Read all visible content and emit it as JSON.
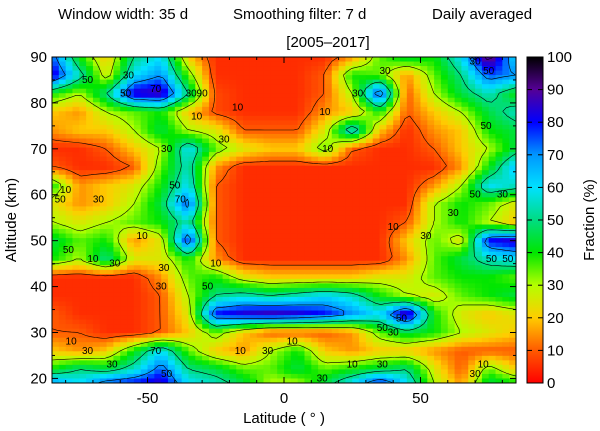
{
  "header": {
    "window_width": "Window width: 35 d",
    "smoothing": "Smoothing filter: 7 d",
    "averaging": "Daily averaged",
    "period": "[2005–2017]"
  },
  "chart_data": {
    "type": "heatmap",
    "xlabel": "Latitude ( ° )",
    "ylabel": "Altitude (km)",
    "colorbar_label": "Fraction (%)",
    "xlim": [
      -85,
      85
    ],
    "ylim": [
      19,
      90
    ],
    "clim": [
      0,
      100
    ],
    "x_ticks": [
      {
        "value": -50,
        "label": "-50"
      },
      {
        "value": 0,
        "label": "0"
      },
      {
        "value": 50,
        "label": "50"
      }
    ],
    "y_ticks": [
      {
        "value": 20,
        "label": "20"
      },
      {
        "value": 30,
        "label": "30"
      },
      {
        "value": 40,
        "label": "40"
      },
      {
        "value": 50,
        "label": "50"
      },
      {
        "value": 60,
        "label": "60"
      },
      {
        "value": 70,
        "label": "70"
      },
      {
        "value": 80,
        "label": "80"
      },
      {
        "value": 90,
        "label": "90"
      }
    ],
    "colorbar_ticks": [
      {
        "value": 0,
        "label": "0"
      },
      {
        "value": 10,
        "label": "10"
      },
      {
        "value": 20,
        "label": "20"
      },
      {
        "value": 30,
        "label": "30"
      },
      {
        "value": 40,
        "label": "40"
      },
      {
        "value": 50,
        "label": "50"
      },
      {
        "value": 60,
        "label": "60"
      },
      {
        "value": 70,
        "label": "70"
      },
      {
        "value": 80,
        "label": "80"
      },
      {
        "value": 90,
        "label": "90"
      },
      {
        "value": 100,
        "label": "100"
      }
    ],
    "colormap_stops": [
      {
        "value": 0,
        "color": "#ff0000"
      },
      {
        "value": 10,
        "color": "#ff5a00"
      },
      {
        "value": 20,
        "color": "#ffcc00"
      },
      {
        "value": 30,
        "color": "#b4ff00"
      },
      {
        "value": 40,
        "color": "#00e600"
      },
      {
        "value": 50,
        "color": "#00dc82"
      },
      {
        "value": 60,
        "color": "#00e1ff"
      },
      {
        "value": 70,
        "color": "#0096ff"
      },
      {
        "value": 80,
        "color": "#0000ff"
      },
      {
        "value": 90,
        "color": "#550096"
      },
      {
        "value": 100,
        "color": "#000000"
      }
    ],
    "contour_levels": [
      10,
      30,
      50,
      70,
      90
    ],
    "contour_labels": [
      {
        "lat": -72,
        "alt": 85,
        "text": "50"
      },
      {
        "lat": -57,
        "alt": 86,
        "text": "30"
      },
      {
        "lat": -47,
        "alt": 83,
        "text": "70"
      },
      {
        "lat": -30,
        "alt": 82,
        "text": "90"
      },
      {
        "lat": -58,
        "alt": 82,
        "text": "50"
      },
      {
        "lat": -17,
        "alt": 79,
        "text": "10"
      },
      {
        "lat": -32,
        "alt": 77,
        "text": "10"
      },
      {
        "lat": -34,
        "alt": 82,
        "text": "30"
      },
      {
        "lat": -22,
        "alt": 72,
        "text": "30"
      },
      {
        "lat": -43,
        "alt": 70,
        "text": "30"
      },
      {
        "lat": 15,
        "alt": 78,
        "text": "10"
      },
      {
        "lat": 27,
        "alt": 82,
        "text": "30"
      },
      {
        "lat": 37,
        "alt": 87,
        "text": "30"
      },
      {
        "lat": 75,
        "alt": 87,
        "text": "50"
      },
      {
        "lat": 70,
        "alt": 89,
        "text": "30"
      },
      {
        "lat": 74,
        "alt": 75,
        "text": "50"
      },
      {
        "lat": 16,
        "alt": 70,
        "text": "10"
      },
      {
        "lat": -80,
        "alt": 61,
        "text": "10"
      },
      {
        "lat": -82,
        "alt": 59,
        "text": "50"
      },
      {
        "lat": -68,
        "alt": 59,
        "text": "30"
      },
      {
        "lat": -40,
        "alt": 62,
        "text": "50"
      },
      {
        "lat": -38,
        "alt": 59,
        "text": "70"
      },
      {
        "lat": 70,
        "alt": 60,
        "text": "50"
      },
      {
        "lat": 80,
        "alt": 60,
        "text": "30"
      },
      {
        "lat": 62,
        "alt": 56,
        "text": "30"
      },
      {
        "lat": -52,
        "alt": 51,
        "text": "10"
      },
      {
        "lat": -79,
        "alt": 48,
        "text": "50"
      },
      {
        "lat": -70,
        "alt": 46,
        "text": "10"
      },
      {
        "lat": -62,
        "alt": 45,
        "text": "30"
      },
      {
        "lat": -44,
        "alt": 44,
        "text": "30"
      },
      {
        "lat": -25,
        "alt": 45,
        "text": "10"
      },
      {
        "lat": -45,
        "alt": 40,
        "text": "30"
      },
      {
        "lat": -28,
        "alt": 40,
        "text": "50"
      },
      {
        "lat": 40,
        "alt": 53,
        "text": "10"
      },
      {
        "lat": 52,
        "alt": 51,
        "text": "30"
      },
      {
        "lat": 76,
        "alt": 46,
        "text": "50"
      },
      {
        "lat": 82,
        "alt": 46,
        "text": "50"
      },
      {
        "lat": 36,
        "alt": 31,
        "text": "50"
      },
      {
        "lat": 43,
        "alt": 33,
        "text": "50"
      },
      {
        "lat": 40,
        "alt": 30,
        "text": "30"
      },
      {
        "lat": 3,
        "alt": 28,
        "text": "10"
      },
      {
        "lat": -6,
        "alt": 26,
        "text": "30"
      },
      {
        "lat": -16,
        "alt": 26,
        "text": "10"
      },
      {
        "lat": -78,
        "alt": 28,
        "text": "10"
      },
      {
        "lat": -72,
        "alt": 26,
        "text": "30"
      },
      {
        "lat": -63,
        "alt": 23,
        "text": "30"
      },
      {
        "lat": -47,
        "alt": 26,
        "text": "70"
      },
      {
        "lat": -43,
        "alt": 21,
        "text": "50"
      },
      {
        "lat": 25,
        "alt": 23,
        "text": "10"
      },
      {
        "lat": 36,
        "alt": 23,
        "text": "30"
      },
      {
        "lat": 14,
        "alt": 20,
        "text": "30"
      },
      {
        "lat": 73,
        "alt": 23,
        "text": "10"
      },
      {
        "lat": 70,
        "alt": 21,
        "text": "30"
      }
    ],
    "grid_lat": [
      -85,
      -75,
      -65,
      -55,
      -45,
      -35,
      -25,
      -15,
      -5,
      5,
      15,
      25,
      35,
      45,
      55,
      65,
      75,
      85
    ],
    "grid_alt": [
      90,
      86,
      82,
      78,
      74,
      70,
      66,
      62,
      58,
      54,
      50,
      46,
      42,
      38,
      34,
      30,
      26,
      22,
      19
    ],
    "values": [
      [
        75,
        40,
        20,
        50,
        60,
        20,
        5,
        5,
        5,
        5,
        5,
        15,
        35,
        45,
        40,
        60,
        95,
        60
      ],
      [
        85,
        55,
        25,
        60,
        70,
        35,
        5,
        5,
        5,
        5,
        10,
        40,
        35,
        15,
        35,
        50,
        75,
        70
      ],
      [
        40,
        30,
        50,
        85,
        88,
        50,
        8,
        5,
        5,
        5,
        10,
        30,
        80,
        10,
        30,
        45,
        55,
        40
      ],
      [
        20,
        15,
        30,
        35,
        40,
        20,
        8,
        5,
        5,
        5,
        15,
        20,
        40,
        10,
        20,
        30,
        45,
        55
      ],
      [
        15,
        20,
        20,
        30,
        45,
        30,
        25,
        10,
        10,
        10,
        25,
        60,
        20,
        5,
        15,
        20,
        40,
        45
      ],
      [
        5,
        5,
        10,
        20,
        30,
        60,
        35,
        25,
        20,
        20,
        35,
        10,
        5,
        5,
        10,
        20,
        30,
        45
      ],
      [
        10,
        5,
        5,
        10,
        35,
        55,
        15,
        5,
        5,
        5,
        5,
        5,
        5,
        5,
        5,
        15,
        40,
        65
      ],
      [
        40,
        15,
        20,
        25,
        40,
        60,
        10,
        5,
        5,
        5,
        5,
        5,
        5,
        5,
        15,
        30,
        60,
        55
      ],
      [
        25,
        15,
        20,
        30,
        45,
        75,
        10,
        5,
        5,
        5,
        5,
        5,
        5,
        5,
        30,
        40,
        35,
        25
      ],
      [
        30,
        25,
        30,
        35,
        40,
        55,
        10,
        5,
        5,
        5,
        5,
        5,
        5,
        10,
        30,
        40,
        30,
        20
      ],
      [
        45,
        35,
        40,
        15,
        25,
        80,
        10,
        5,
        5,
        5,
        5,
        5,
        5,
        20,
        35,
        25,
        80,
        85
      ],
      [
        40,
        30,
        50,
        25,
        25,
        40,
        15,
        5,
        5,
        5,
        5,
        5,
        5,
        15,
        35,
        45,
        55,
        60
      ],
      [
        5,
        5,
        5,
        5,
        15,
        35,
        40,
        25,
        20,
        20,
        20,
        20,
        25,
        25,
        35,
        40,
        40,
        35
      ],
      [
        5,
        5,
        5,
        5,
        10,
        30,
        50,
        55,
        50,
        55,
        60,
        55,
        40,
        30,
        25,
        35,
        40,
        45
      ],
      [
        10,
        5,
        5,
        5,
        10,
        25,
        80,
        85,
        88,
        85,
        80,
        70,
        60,
        90,
        40,
        25,
        20,
        25
      ],
      [
        10,
        10,
        5,
        5,
        10,
        20,
        35,
        20,
        10,
        10,
        10,
        15,
        35,
        45,
        40,
        30,
        25,
        20
      ],
      [
        20,
        15,
        20,
        40,
        60,
        35,
        20,
        15,
        30,
        40,
        20,
        15,
        20,
        20,
        15,
        10,
        10,
        10
      ],
      [
        40,
        50,
        45,
        55,
        75,
        50,
        45,
        35,
        35,
        45,
        35,
        40,
        45,
        50,
        25,
        10,
        35,
        20
      ],
      [
        70,
        60,
        75,
        80,
        85,
        60,
        55,
        45,
        30,
        30,
        45,
        60,
        80,
        60,
        30,
        15,
        45,
        40
      ]
    ]
  }
}
